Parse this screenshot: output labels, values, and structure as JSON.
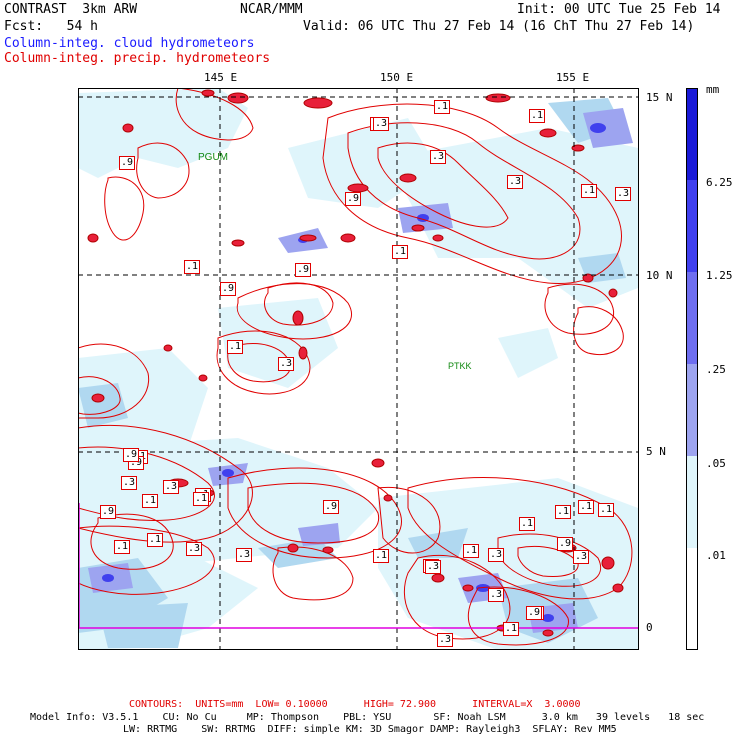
{
  "header": {
    "title": "CONTRAST  3km ARW",
    "org": "NCAR/MMM",
    "init": "Init: 00 UTC Tue 25 Feb 14",
    "fcst": "Fcst:   54 h",
    "valid": "Valid: 06 UTC Thu 27 Feb 14 (16 ChT Thu 27 Feb 14)",
    "legend_blue": "Column-integ. cloud hydrometeors",
    "legend_red": "Column-integ. precip. hydrometeors"
  },
  "axes": {
    "lon_labels": [
      "145 E",
      "150 E",
      "155 E"
    ],
    "lat_labels": [
      "15 N",
      "10 N",
      "5 N",
      "0"
    ]
  },
  "stations": {
    "pgum": "PGUM",
    "ptkk": "PTKK"
  },
  "contour_labels": [
    ".9",
    ".3",
    ".1",
    ".3",
    ".1",
    ".9",
    ".3",
    ".1",
    ".3",
    ".1",
    ".1",
    ".9",
    ".1",
    ".9",
    ".1",
    ".3",
    ".3",
    ".9",
    ".1",
    ".1",
    ".9",
    ".3",
    ".1",
    ".3",
    ".1",
    ".3",
    ".9",
    ".9",
    ".1",
    ".9",
    ".3",
    ".1",
    ".9",
    ".1",
    ".3",
    ".1",
    ".3",
    ".1",
    ".3",
    ".1",
    ".3",
    ".1",
    ".9",
    ".1",
    ".9",
    ".3",
    ".3"
  ],
  "colorbar": {
    "unit": "mm",
    "ticks": [
      "6.25",
      "1.25",
      ".25",
      ".05",
      ".01"
    ],
    "colors": {
      "level1": "#dff5fb",
      "level2": "#b0d8f0",
      "level3": "#9da4f0",
      "level4": "#6e6ef0",
      "level5": "#4040ee",
      "level6": "#1a1ad8"
    }
  },
  "footer": {
    "contours": "CONTOURS:  UNITS=mm  LOW= 0.10000      HIGH= 72.900      INTERVAL=X  3.0000",
    "model_line1": "Model Info: V3.5.1    CU: No Cu     MP: Thompson    PBL: YSU       SF: Noah LSM      3.0 km   39 levels   18 sec",
    "model_line2": "LW: RRTMG    SW: RRTMG  DIFF: simple KM: 3D Smagor DAMP: Rayleigh3  SFLAY: Rev MM5"
  }
}
